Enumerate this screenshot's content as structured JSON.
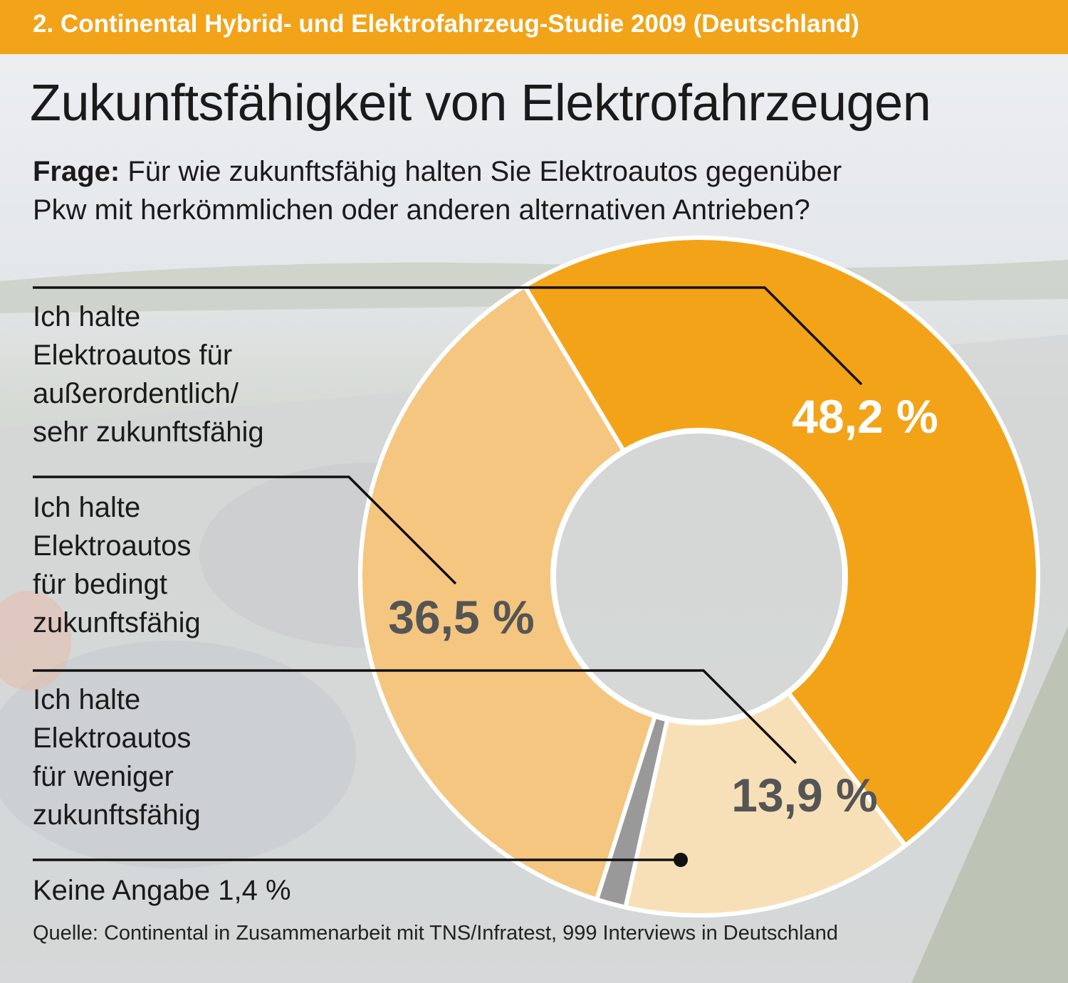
{
  "header": {
    "banner": "2. Continental Hybrid- und Elektrofahrzeug-Studie 2009 (Deutschland)",
    "title": "Zukunftsfähigkeit von Elektrofahrzeugen",
    "question_label": "Frage:",
    "question_text_line1": "Für wie zukunftsfähig halten Sie Elektroautos gegenüber",
    "question_text_line2": "Pkw mit herkömmlichen oder anderen alternativen Antrieben?"
  },
  "colors": {
    "banner": "#f3a318",
    "slice_sehr": "#f3a318",
    "slice_bedingt": "#f5c680",
    "slice_weniger": "#f7e0b8",
    "slice_keine": "#999999",
    "label_dark": "#555555",
    "label_light": "#ffffff"
  },
  "chart_data": {
    "type": "pie",
    "variant": "donut",
    "unit": "%",
    "slices": [
      {
        "key": "sehr",
        "label_line1": "Ich halte",
        "label_line2": "Elektroautos für",
        "label_line3": "außerordentlich/",
        "label_line4": "sehr zukunftsfähig",
        "value": 48.2,
        "value_label": "48,2 %"
      },
      {
        "key": "weniger",
        "label_line1": "Ich halte",
        "label_line2": "Elektroautos",
        "label_line3": "für weniger",
        "label_line4": "zukunftsfähig",
        "value": 13.9,
        "value_label": "13,9 %"
      },
      {
        "key": "keine",
        "label_line1": "Keine Angabe 1,4 %",
        "value": 1.4
      },
      {
        "key": "bedingt",
        "label_line1": "Ich halte",
        "label_line2": "Elektroautos",
        "label_line3": "für bedingt",
        "label_line4": "zukunftsfähig",
        "value": 36.5,
        "value_label": "36,5 %"
      }
    ]
  },
  "footer": {
    "source": "Quelle: Continental in Zusammenarbeit mit TNS/Infratest, 999 Interviews in Deutschland"
  }
}
